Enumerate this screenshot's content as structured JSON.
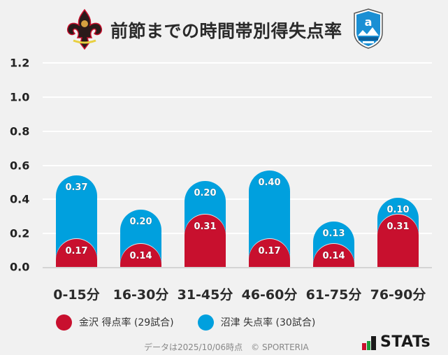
{
  "header": {
    "title": "前節までの時間帯別得失点率",
    "left_logo": "kanazawa-crest-icon",
    "right_logo": "numazu-azul-claro-crest-icon"
  },
  "chart_data": {
    "type": "bar",
    "stacked": true,
    "title": "前節までの時間帯別得失点率",
    "xlabel": "",
    "ylabel": "",
    "ylim": [
      0,
      1.2
    ],
    "yticks": [
      "0.0",
      "0.2",
      "0.4",
      "0.6",
      "0.8",
      "1.0",
      "1.2"
    ],
    "grid": true,
    "legend_position": "bottom",
    "categories": [
      "0-15分",
      "16-30分",
      "31-45分",
      "46-60分",
      "61-75分",
      "76-90分"
    ],
    "series": [
      {
        "name": "金沢 得点率 (29試合)",
        "color": "#c8102e",
        "values": [
          0.17,
          0.14,
          0.31,
          0.17,
          0.14,
          0.31
        ],
        "labels": [
          "0.17",
          "0.14",
          "0.31",
          "0.17",
          "0.14",
          "0.31"
        ]
      },
      {
        "name": "沼津 失点率 (30試合)",
        "color": "#00a0de",
        "values": [
          0.37,
          0.2,
          0.2,
          0.4,
          0.13,
          0.1
        ],
        "labels": [
          "0.37",
          "0.20",
          "0.20",
          "0.40",
          "0.13",
          "0.10"
        ]
      }
    ]
  },
  "legend": {
    "items": [
      {
        "label": "金沢 得点率 (29試合)",
        "color": "#c8102e"
      },
      {
        "label": "沼津 失点率 (30試合)",
        "color": "#00a0de"
      }
    ]
  },
  "footer": {
    "note": "データは2025/10/06時点　© SPORTERIA",
    "brand": "STATs"
  }
}
